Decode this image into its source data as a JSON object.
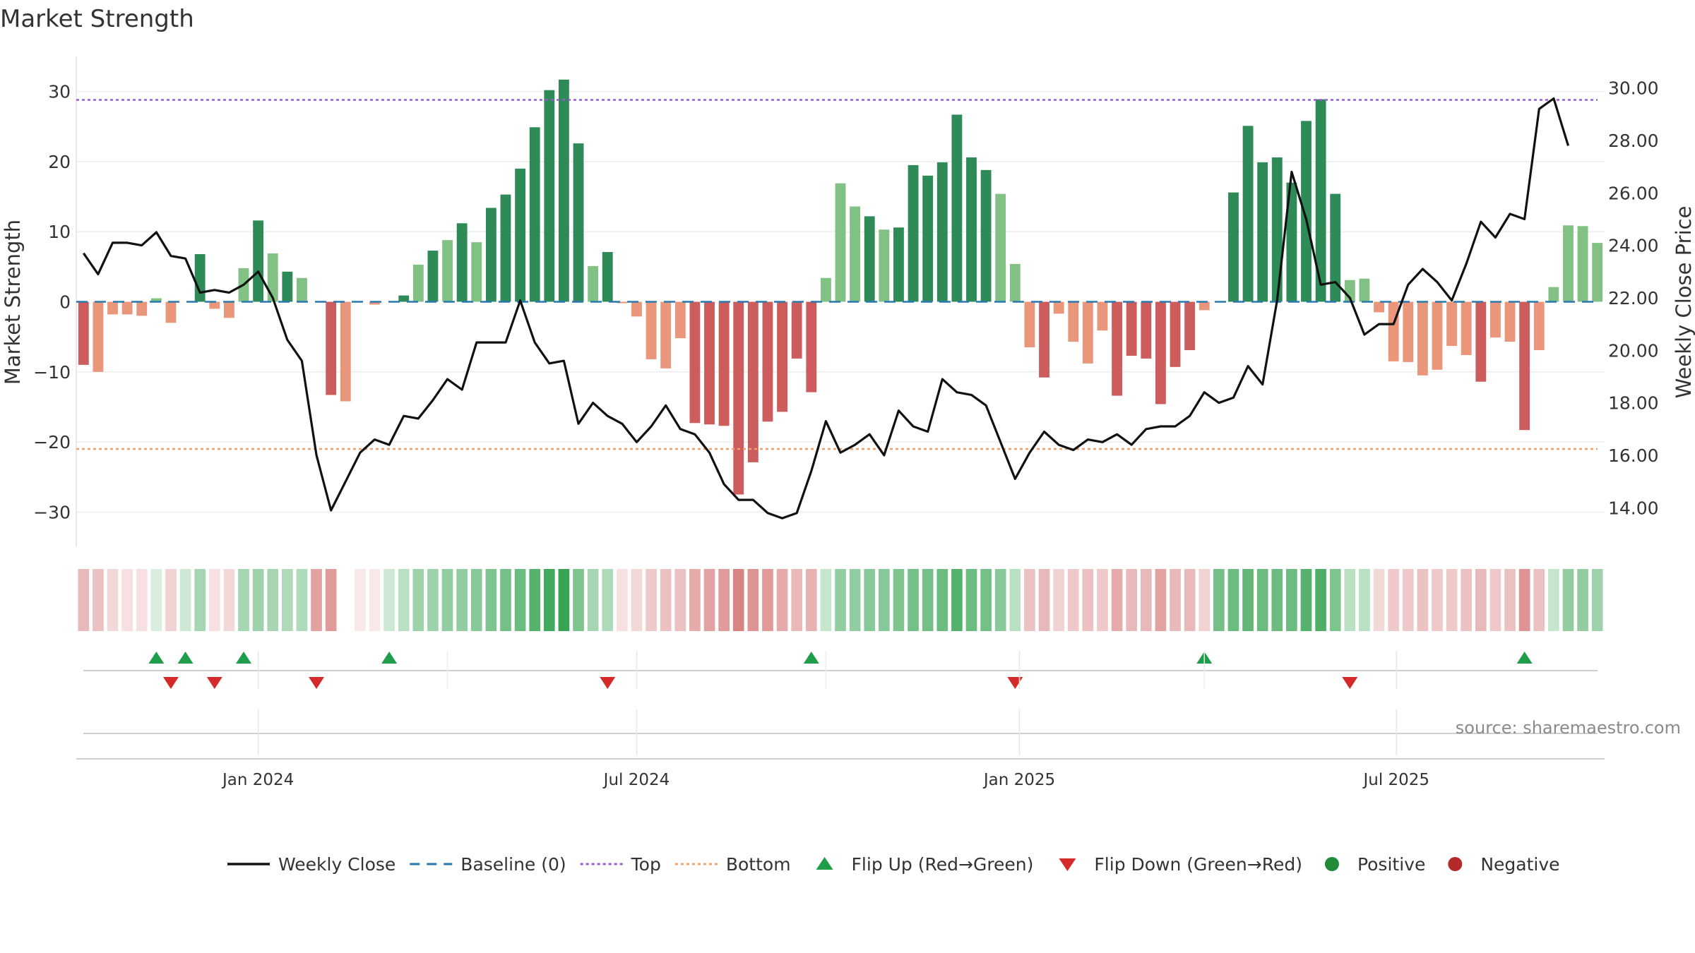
{
  "chart_data": {
    "type": "bar",
    "title": "Market Strength",
    "ylabel": "Market Strength",
    "y2label": "Weekly Close Price",
    "ylim": [
      -35,
      35
    ],
    "y2lim": [
      12.5,
      31.2
    ],
    "yticks": [
      30,
      20,
      10,
      0,
      -10,
      -20,
      -30
    ],
    "ytick_labels": [
      "30",
      "20",
      "10",
      "0",
      "−10",
      "−20",
      "−30"
    ],
    "y2ticks": [
      30,
      28,
      26,
      24,
      22,
      20,
      18,
      16,
      14
    ],
    "y2tick_labels": [
      "30.00",
      "28.00",
      "26.00",
      "24.00",
      "22.00",
      "20.00",
      "18.00",
      "16.00",
      "14.00"
    ],
    "top_level": 28.8,
    "bottom_level": -21,
    "x_labels": [
      {
        "index": 12.5,
        "label": "Jan 2024"
      },
      {
        "index": 38.5,
        "label": "Jul 2024"
      },
      {
        "index": 64.8,
        "label": "Jan 2025"
      },
      {
        "index": 90.7,
        "label": "Jul 2025"
      }
    ],
    "strength": [
      -9,
      -10,
      -1.8,
      -1.8,
      -2,
      0.5,
      -3,
      0,
      6.8,
      -1,
      -2.3,
      4.8,
      11.6,
      6.9,
      4.3,
      3.4,
      0,
      -13.3,
      -14.2,
      0,
      -0.4,
      0,
      0.9,
      5.3,
      7.3,
      8.8,
      11.2,
      8.5,
      13.4,
      15.3,
      19,
      24.9,
      30.2,
      31.7,
      22.6,
      5.1,
      7.1,
      -0.2,
      -2.1,
      -8.2,
      -9.5,
      -5.2,
      -17.3,
      -17.5,
      -17.7,
      -27.5,
      -22.9,
      -17.1,
      -15.7,
      -8.1,
      -12.9,
      3.4,
      16.9,
      13.6,
      12.2,
      10.3,
      10.6,
      19.5,
      18,
      19.9,
      26.7,
      20.6,
      18.8,
      15.4,
      5.4,
      -6.5,
      -10.8,
      -1.7,
      -5.7,
      -8.8,
      -4.1,
      -13.4,
      -7.7,
      -8.1,
      -14.6,
      -9.3,
      -6.9,
      -1.2,
      0,
      15.6,
      25.1,
      19.9,
      20.6,
      17,
      25.8,
      28.9,
      15.4,
      3.1,
      3.3,
      -1.5,
      -8.5,
      -8.6,
      -10.5,
      -9.7,
      -6.3,
      -7.6,
      -11.4,
      -5.1,
      -5.7,
      -18.3,
      -6.9,
      2.1,
      10.9,
      10.8,
      8.4
    ],
    "weekly_close": [
      23.7,
      22.9,
      24.1,
      24.1,
      24.0,
      24.5,
      23.6,
      23.5,
      22.2,
      22.3,
      22.2,
      22.5,
      23.0,
      22.0,
      20.4,
      19.6,
      16.0,
      13.9,
      15.0,
      16.1,
      16.6,
      16.4,
      17.5,
      17.4,
      18.1,
      18.9,
      18.5,
      20.3,
      20.3,
      20.3,
      21.9,
      20.3,
      19.5,
      19.6,
      17.2,
      18.0,
      17.5,
      17.2,
      16.5,
      17.1,
      17.9,
      17.0,
      16.8,
      16.1,
      14.9,
      14.3,
      14.3,
      13.8,
      13.6,
      13.8,
      15.4,
      17.3,
      16.1,
      16.4,
      16.8,
      16.0,
      17.7,
      17.1,
      16.9,
      18.9,
      18.4,
      18.3,
      17.9,
      16.5,
      15.1,
      16.1,
      16.9,
      16.4,
      16.2,
      16.6,
      16.5,
      16.8,
      16.4,
      17.0,
      17.1,
      17.1,
      17.5,
      18.4,
      18.0,
      18.2,
      19.4,
      18.7,
      21.9,
      26.8,
      25.0,
      22.5,
      22.6,
      22.0,
      20.6,
      21.0,
      21.0,
      22.5,
      23.1,
      22.6,
      21.9,
      23.3,
      24.9,
      24.3,
      25.2,
      25.0,
      29.2,
      29.6,
      27.8
    ],
    "ticker_intensity": [
      -0.45,
      -0.4,
      -0.25,
      -0.2,
      -0.2,
      0.2,
      -0.3,
      0.25,
      0.45,
      -0.2,
      -0.25,
      0.45,
      0.5,
      0.45,
      0.4,
      0.4,
      -0.6,
      -0.65,
      0,
      -0.15,
      -0.15,
      0.25,
      0.35,
      0.5,
      0.5,
      0.55,
      0.55,
      0.6,
      0.65,
      0.7,
      0.75,
      0.85,
      0.95,
      1.0,
      0.65,
      0.45,
      0.4,
      -0.2,
      -0.25,
      -0.35,
      -0.4,
      -0.4,
      -0.55,
      -0.6,
      -0.65,
      -0.8,
      -0.7,
      -0.65,
      -0.55,
      -0.45,
      -0.5,
      0.3,
      0.55,
      0.55,
      0.6,
      0.6,
      0.65,
      0.7,
      0.7,
      0.75,
      0.85,
      0.75,
      0.7,
      0.6,
      0.35,
      -0.4,
      -0.45,
      -0.3,
      -0.35,
      -0.4,
      -0.35,
      -0.55,
      -0.45,
      -0.45,
      -0.6,
      -0.45,
      -0.45,
      -0.3,
      0.7,
      0.75,
      0.8,
      0.75,
      0.75,
      0.75,
      0.85,
      0.9,
      0.65,
      0.35,
      0.35,
      -0.25,
      -0.35,
      -0.35,
      -0.4,
      -0.35,
      -0.35,
      -0.4,
      -0.45,
      -0.35,
      -0.4,
      -0.7,
      -0.4,
      0.3,
      0.55,
      0.55,
      0.5
    ],
    "flip_up": [
      5.5,
      7.5,
      11.5,
      21.5,
      50.5,
      77.5,
      99.5
    ],
    "flip_down": [
      6.5,
      9.5,
      16.5,
      36.5,
      64.5,
      87.5
    ],
    "legend": [
      {
        "label": "Weekly Close",
        "kind": "line",
        "color": "#111111"
      },
      {
        "label": "Baseline (0)",
        "kind": "dash",
        "color": "#2a78b0"
      },
      {
        "label": "Top",
        "kind": "dot",
        "color": "#9b59d0"
      },
      {
        "label": "Bottom",
        "kind": "dot",
        "color": "#f0a06a"
      },
      {
        "label": "Flip Up (Red→Green)",
        "kind": "tri-up",
        "color": "#1e9e4a"
      },
      {
        "label": "Flip Down (Green→Red)",
        "kind": "tri-down",
        "color": "#d62a2a"
      },
      {
        "label": "Positive",
        "kind": "circle",
        "color": "#238a3a"
      },
      {
        "label": "Negative",
        "kind": "circle",
        "color": "#b22a2a"
      }
    ],
    "source": "source: sharemaestro.com",
    "colors": {
      "pos_strong": "#2e8b57",
      "pos_light": "#82c184",
      "neg_strong": "#cd5c5c",
      "neg_light": "#e9967a",
      "top_line": "#9b59d0",
      "bottom_line": "#f0a06a",
      "baseline": "#2a78b0",
      "price_line": "#111111"
    }
  }
}
